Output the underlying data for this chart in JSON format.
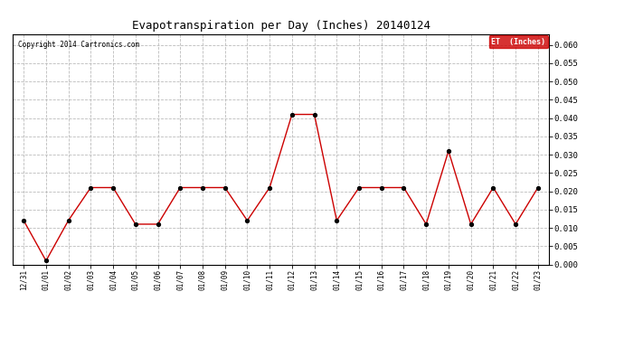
{
  "title": "Evapotranspiration per Day (Inches) 20140124",
  "copyright": "Copyright 2014 Cartronics.com",
  "legend_label": "ET  (Inches)",
  "legend_bg": "#cc0000",
  "legend_text_color": "#ffffff",
  "line_color": "#cc0000",
  "marker_color": "#000000",
  "background_color": "#ffffff",
  "grid_color": "#bbbbbb",
  "ylim": [
    0.0,
    0.063
  ],
  "yticks": [
    0.0,
    0.005,
    0.01,
    0.015,
    0.02,
    0.025,
    0.03,
    0.035,
    0.04,
    0.045,
    0.05,
    0.055,
    0.06
  ],
  "x_labels": [
    "12/31",
    "01/01",
    "01/02",
    "01/03",
    "01/04",
    "01/05",
    "01/06",
    "01/07",
    "01/08",
    "01/09",
    "01/10",
    "01/11",
    "01/12",
    "01/13",
    "01/14",
    "01/15",
    "01/16",
    "01/17",
    "01/18",
    "01/19",
    "01/20",
    "01/21",
    "01/22",
    "01/23"
  ],
  "y_values": [
    0.012,
    0.001,
    0.012,
    0.021,
    0.021,
    0.011,
    0.011,
    0.021,
    0.021,
    0.021,
    0.012,
    0.021,
    0.041,
    0.041,
    0.012,
    0.021,
    0.021,
    0.021,
    0.011,
    0.031,
    0.011,
    0.021,
    0.011,
    0.021
  ],
  "figsize": [
    6.9,
    3.75
  ],
  "dpi": 100
}
